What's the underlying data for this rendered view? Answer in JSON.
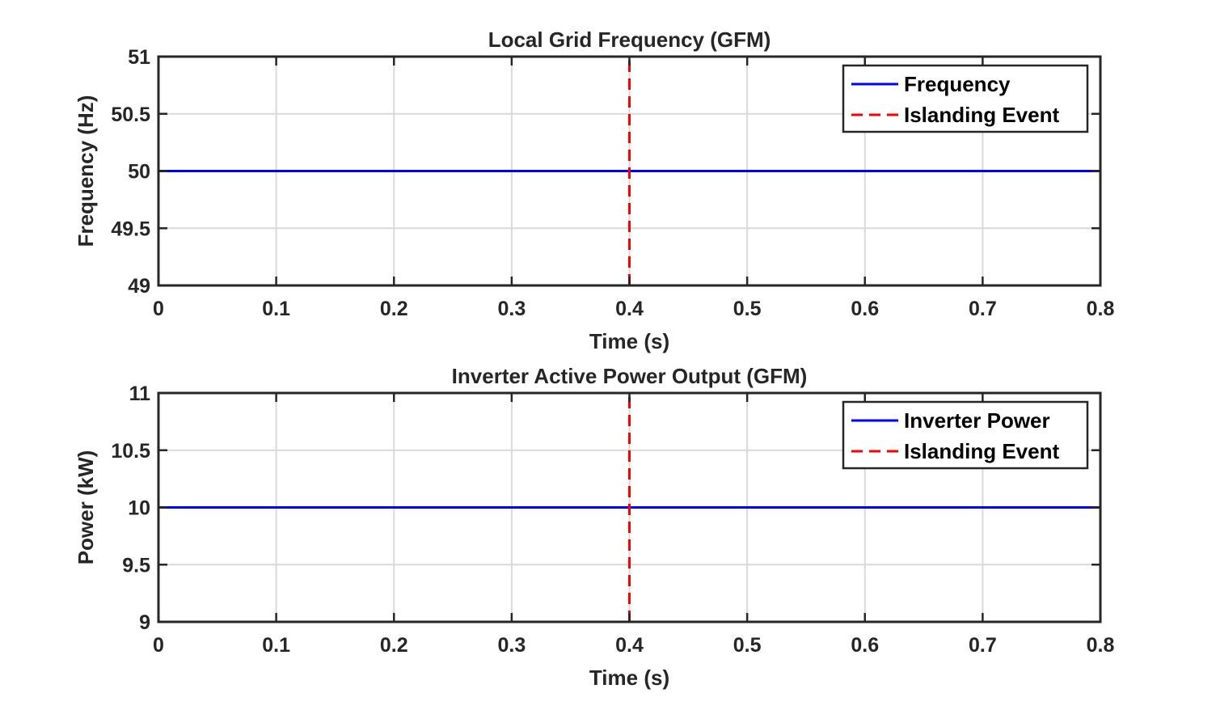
{
  "colors": {
    "series_line": "#0000ff",
    "event_line": "#ff0000",
    "grid": "#d9d9d9",
    "axes": "#262626",
    "background": "#ffffff"
  },
  "chart_data": [
    {
      "type": "line",
      "title": "Local Grid Frequency (GFM)",
      "xlabel": "Time (s)",
      "ylabel": "Frequency (Hz)",
      "xlim": [
        0,
        0.8
      ],
      "ylim": [
        49,
        51
      ],
      "xticks": [
        0,
        0.1,
        0.2,
        0.3,
        0.4,
        0.5,
        0.6,
        0.7,
        0.8
      ],
      "xtick_labels": [
        "0",
        "0.1",
        "0.2",
        "0.3",
        "0.4",
        "0.5",
        "0.6",
        "0.7",
        "0.8"
      ],
      "yticks": [
        49,
        49.5,
        50,
        50.5,
        51
      ],
      "ytick_labels": [
        "49",
        "49.5",
        "50",
        "50.5",
        "51"
      ],
      "grid": true,
      "legend_position": "top-right",
      "series": [
        {
          "name": "Frequency",
          "style": "solid",
          "color": "#0000ff",
          "x": [
            0,
            0.8
          ],
          "y": [
            50,
            50
          ]
        },
        {
          "name": "Islanding Event",
          "style": "dashed",
          "color": "#ff0000",
          "x": [
            0.4,
            0.4
          ],
          "y": [
            49,
            51
          ]
        }
      ]
    },
    {
      "type": "line",
      "title": "Inverter Active Power Output (GFM)",
      "xlabel": "Time (s)",
      "ylabel": "Power (kW)",
      "xlim": [
        0,
        0.8
      ],
      "ylim": [
        9,
        11
      ],
      "xticks": [
        0,
        0.1,
        0.2,
        0.3,
        0.4,
        0.5,
        0.6,
        0.7,
        0.8
      ],
      "xtick_labels": [
        "0",
        "0.1",
        "0.2",
        "0.3",
        "0.4",
        "0.5",
        "0.6",
        "0.7",
        "0.8"
      ],
      "yticks": [
        9,
        9.5,
        10,
        10.5,
        11
      ],
      "ytick_labels": [
        "9",
        "9.5",
        "10",
        "10.5",
        "11"
      ],
      "grid": true,
      "legend_position": "top-right",
      "series": [
        {
          "name": "Inverter Power",
          "style": "solid",
          "color": "#0000ff",
          "x": [
            0,
            0.8
          ],
          "y": [
            10,
            10
          ]
        },
        {
          "name": "Islanding Event",
          "style": "dashed",
          "color": "#ff0000",
          "x": [
            0.4,
            0.4
          ],
          "y": [
            9,
            11
          ]
        }
      ]
    }
  ]
}
